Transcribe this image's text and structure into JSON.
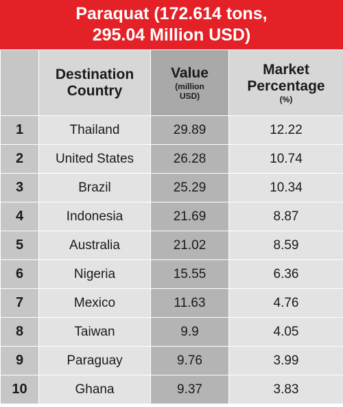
{
  "title": {
    "line1": "Paraquat (172.614 tons,",
    "line2": "295.04 Million USD)"
  },
  "colors": {
    "title_bg": "#e42127",
    "rank_bg": "#c6c6c6",
    "country_bg": "#e3e3e3",
    "value_bg": "#b4b4b4"
  },
  "headers": {
    "rank": "",
    "country_line1": "Destination",
    "country_line2": "Country",
    "value_main": "Value",
    "value_sub1": "(million",
    "value_sub2": "USD)",
    "pct_line1": "Market",
    "pct_line2": "Percentage",
    "pct_sub": "(%)"
  },
  "chart_data": {
    "type": "table",
    "title": "Paraquat (172.614 tons, 295.04 Million USD)",
    "columns": [
      "",
      "Destination Country",
      "Value (million USD)",
      "Market Percentage (%)"
    ],
    "rows": [
      {
        "rank": "1",
        "country": "Thailand",
        "value": "29.89",
        "percentage": "12.22"
      },
      {
        "rank": "2",
        "country": "United States",
        "value": "26.28",
        "percentage": "10.74"
      },
      {
        "rank": "3",
        "country": "Brazil",
        "value": "25.29",
        "percentage": "10.34"
      },
      {
        "rank": "4",
        "country": "Indonesia",
        "value": "21.69",
        "percentage": "8.87"
      },
      {
        "rank": "5",
        "country": "Australia",
        "value": "21.02",
        "percentage": "8.59"
      },
      {
        "rank": "6",
        "country": "Nigeria",
        "value": "15.55",
        "percentage": "6.36"
      },
      {
        "rank": "7",
        "country": "Mexico",
        "value": "11.63",
        "percentage": "4.76"
      },
      {
        "rank": "8",
        "country": "Taiwan",
        "value": "9.9",
        "percentage": "4.05"
      },
      {
        "rank": "9",
        "country": "Paraguay",
        "value": "9.76",
        "percentage": "3.99"
      },
      {
        "rank": "10",
        "country": "Ghana",
        "value": "9.37",
        "percentage": "3.83"
      }
    ]
  }
}
